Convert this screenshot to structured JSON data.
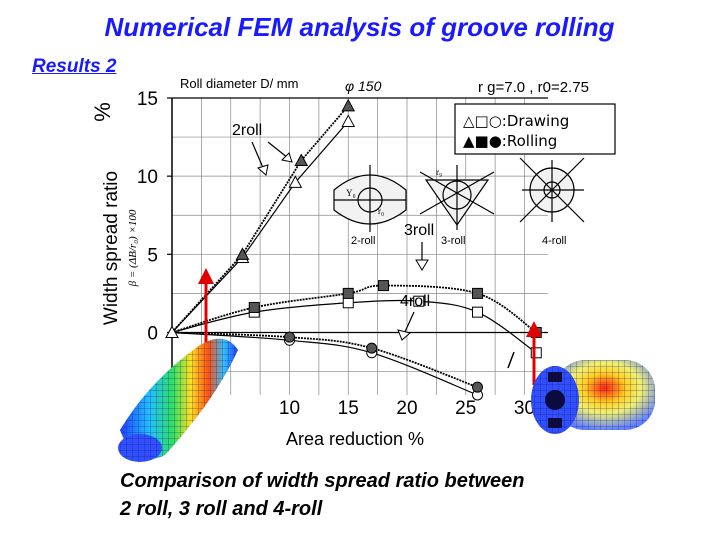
{
  "title": "Numerical FEM analysis of groove rolling",
  "subtitle": "Results 2",
  "caption_line1": "Comparison of width spread ratio between",
  "caption_line2": "2 roll, 3 roll and 4-roll",
  "colors": {
    "title": "#1a1aff",
    "arrow": "#e00000",
    "lines": "#000000"
  },
  "chart_data": {
    "type": "line",
    "xlabel": "Area reduction %",
    "ylabel": "Width spread ratio",
    "ylabel_formula": "β = (ΔB/r₀) ×100",
    "y_unit": "%",
    "xlim": [
      0,
      32
    ],
    "ylim": [
      -4,
      15
    ],
    "x_ticks": [
      "10",
      "15",
      "20",
      "25",
      "30"
    ],
    "y_ticks": [
      "0",
      "5",
      "10",
      "15"
    ],
    "header_left": "Roll diameter D/ mm",
    "header_mid": "φ 150",
    "header_right": "r g=7.0 , r0=2.75",
    "legend": [
      "△□○:Drawing",
      "▲■●:Rolling"
    ],
    "inset_labels": [
      "2-roll",
      "3-roll",
      "4-roll"
    ],
    "series": [
      {
        "name": "2roll",
        "marker": "triangle",
        "drawing": {
          "x": [
            0,
            6,
            10.5,
            15
          ],
          "y": [
            0,
            4.8,
            9.6,
            13.5
          ]
        },
        "rolling": {
          "x": [
            0,
            6,
            11,
            15
          ],
          "y": [
            0,
            5.0,
            11.0,
            14.5
          ]
        }
      },
      {
        "name": "3roll",
        "marker": "square",
        "drawing": {
          "x": [
            0,
            7,
            15,
            21,
            26,
            31
          ],
          "y": [
            0,
            1.3,
            1.9,
            2.0,
            1.3,
            -1.3
          ]
        },
        "rolling": {
          "x": [
            0,
            7,
            15,
            18,
            26,
            31
          ],
          "y": [
            0,
            1.6,
            2.5,
            3.0,
            2.5,
            0
          ]
        }
      },
      {
        "name": "4roll",
        "marker": "circle",
        "drawing": {
          "x": [
            0,
            10,
            17,
            26
          ],
          "y": [
            0,
            -0.5,
            -1.3,
            -4.0
          ]
        },
        "rolling": {
          "x": [
            0,
            10,
            17,
            26
          ],
          "y": [
            0,
            -0.3,
            -1.0,
            -3.5
          ]
        }
      }
    ]
  }
}
